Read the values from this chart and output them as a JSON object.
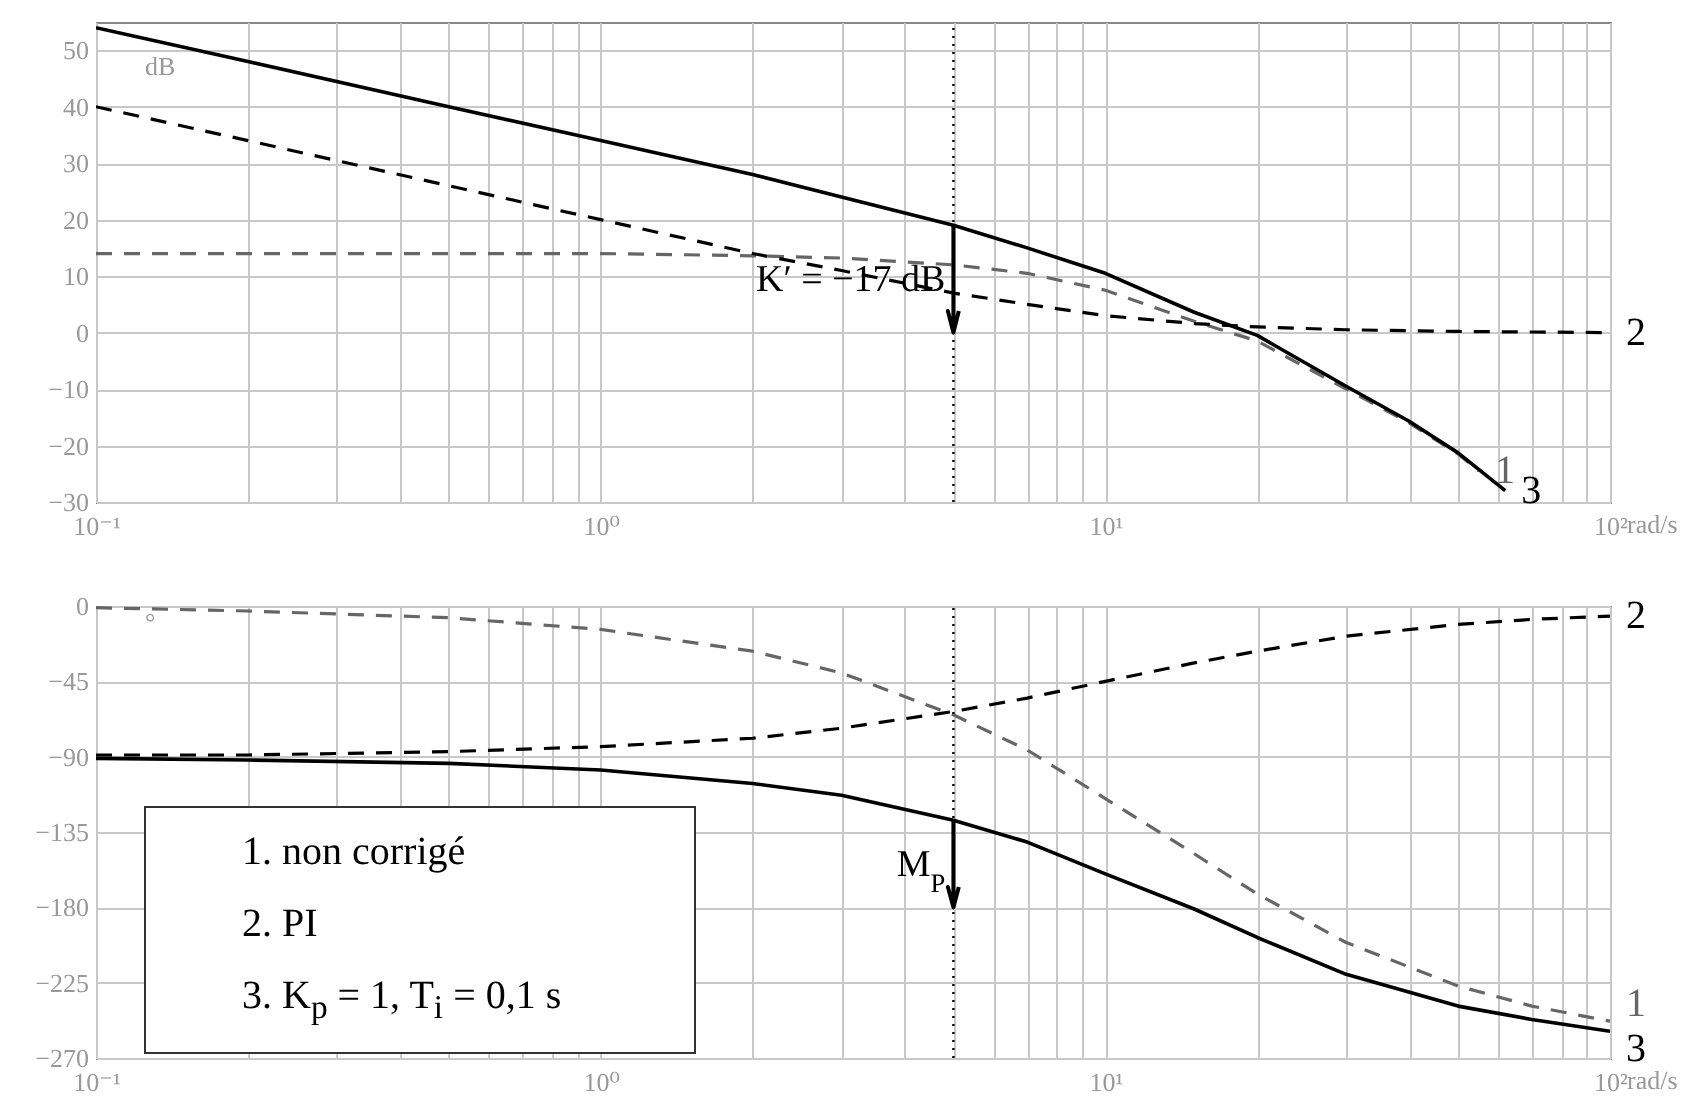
{
  "chart_data": [
    {
      "type": "line",
      "ylabel": "dB",
      "xlabel": "rad/s",
      "log": "x",
      "grid": true,
      "xlim": [
        0.1,
        100
      ],
      "ylim": [
        -30,
        55
      ],
      "xticks": [
        {
          "value": 0.1,
          "label": "10⁻¹"
        },
        {
          "value": 0.2,
          "label": null
        },
        {
          "value": 0.3,
          "label": null
        },
        {
          "value": 0.4,
          "label": null
        },
        {
          "value": 0.5,
          "label": null
        },
        {
          "value": 0.6,
          "label": null
        },
        {
          "value": 0.7,
          "label": null
        },
        {
          "value": 0.8,
          "label": null
        },
        {
          "value": 0.9,
          "label": null
        },
        {
          "value": 1,
          "label": "10⁰"
        },
        {
          "value": 2,
          "label": null
        },
        {
          "value": 3,
          "label": null
        },
        {
          "value": 4,
          "label": null
        },
        {
          "value": 5,
          "label": null
        },
        {
          "value": 6,
          "label": null
        },
        {
          "value": 7,
          "label": null
        },
        {
          "value": 8,
          "label": null
        },
        {
          "value": 9,
          "label": null
        },
        {
          "value": 10,
          "label": "10¹"
        },
        {
          "value": 20,
          "label": null
        },
        {
          "value": 30,
          "label": null
        },
        {
          "value": 40,
          "label": null
        },
        {
          "value": 50,
          "label": null
        },
        {
          "value": 60,
          "label": null
        },
        {
          "value": 70,
          "label": null
        },
        {
          "value": 80,
          "label": null
        },
        {
          "value": 90,
          "label": null
        },
        {
          "value": 100,
          "label": "10²"
        }
      ],
      "yticks": [
        {
          "value": -30,
          "label": "−30"
        },
        {
          "value": -20,
          "label": "−20"
        },
        {
          "value": -10,
          "label": "−10"
        },
        0,
        10,
        20,
        30,
        40,
        50
      ],
      "x": [
        0.1,
        0.2,
        0.5,
        1,
        2,
        3,
        5,
        7,
        10,
        15,
        20,
        30,
        50,
        70,
        100
      ],
      "series": [
        {
          "name": "1",
          "color": "#666666",
          "line_style": "dashed",
          "x": [
            0.1,
            0.2,
            0.5,
            1,
            2,
            3,
            5,
            7,
            10,
            15,
            20,
            30,
            40,
            50,
            55
          ],
          "values": [
            14,
            14,
            14,
            14,
            13.6,
            13.2,
            12,
            10.5,
            7.5,
            2,
            -1.5,
            -10,
            -16,
            -21.5,
            -24.5
          ]
        },
        {
          "name": "2",
          "color": "#000000",
          "line_style": "dashed",
          "values": [
            40,
            34,
            26,
            20,
            14,
            11,
            7,
            5,
            3,
            1.6,
            1,
            0.5,
            0.2,
            0.1,
            0
          ]
        },
        {
          "name": "3",
          "color": "#000000",
          "line_style": "solid",
          "x": [
            0.1,
            0.2,
            0.5,
            1,
            2,
            3,
            5,
            7,
            10,
            15,
            20,
            30,
            40,
            50,
            62
          ],
          "values": [
            54,
            48,
            40,
            34,
            28,
            24,
            19,
            15,
            10.5,
            3.6,
            -0.5,
            -9.5,
            -15.7,
            -21.3,
            -28
          ]
        }
      ],
      "ref_lines": [
        {
          "axis": "x",
          "value": 5,
          "color": "#000000",
          "line_style": "dotted"
        }
      ],
      "annotations": [
        {
          "text": "K′ = −17 dB",
          "x": 5,
          "y": 0
        }
      ]
    },
    {
      "type": "line",
      "ylabel": "°",
      "xlabel": "rad/s",
      "log": "x",
      "grid": true,
      "xlim": [
        0.1,
        100
      ],
      "ylim": [
        -270,
        0
      ],
      "xticks": [
        {
          "value": 0.1,
          "label": "10⁻¹"
        },
        {
          "value": 0.2,
          "label": null
        },
        {
          "value": 0.3,
          "label": null
        },
        {
          "value": 0.4,
          "label": null
        },
        {
          "value": 0.5,
          "label": null
        },
        {
          "value": 0.6,
          "label": null
        },
        {
          "value": 0.7,
          "label": null
        },
        {
          "value": 0.8,
          "label": null
        },
        {
          "value": 0.9,
          "label": null
        },
        {
          "value": 1,
          "label": "10⁰"
        },
        {
          "value": 2,
          "label": null
        },
        {
          "value": 3,
          "label": null
        },
        {
          "value": 4,
          "label": null
        },
        {
          "value": 5,
          "label": null
        },
        {
          "value": 6,
          "label": null
        },
        {
          "value": 7,
          "label": null
        },
        {
          "value": 8,
          "label": null
        },
        {
          "value": 9,
          "label": null
        },
        {
          "value": 10,
          "label": "10¹"
        },
        {
          "value": 20,
          "label": null
        },
        {
          "value": 30,
          "label": null
        },
        {
          "value": 40,
          "label": null
        },
        {
          "value": 50,
          "label": null
        },
        {
          "value": 60,
          "label": null
        },
        {
          "value": 70,
          "label": null
        },
        {
          "value": 80,
          "label": null
        },
        {
          "value": 90,
          "label": null
        },
        {
          "value": 100,
          "label": "10²"
        }
      ],
      "yticks": [
        {
          "value": -270,
          "label": "−270"
        },
        {
          "value": -225,
          "label": "−225"
        },
        {
          "value": -180,
          "label": "−180"
        },
        {
          "value": -135,
          "label": "−135"
        },
        {
          "value": -90,
          "label": "−90"
        },
        {
          "value": -45,
          "label": "−45"
        },
        0
      ],
      "x": [
        0.1,
        0.2,
        0.5,
        1,
        2,
        3,
        5,
        7,
        10,
        15,
        20,
        30,
        50,
        70,
        100
      ],
      "series": [
        {
          "name": "1",
          "color": "#666666",
          "line_style": "dashed",
          "values": [
            -1,
            -3,
            -7,
            -14,
            -27,
            -40,
            -65,
            -86,
            -115,
            -148,
            -172,
            -201,
            -227,
            -239,
            -248
          ]
        },
        {
          "name": "2",
          "color": "#000000",
          "line_style": "dashed",
          "values": [
            -89,
            -89,
            -87,
            -84,
            -79,
            -73,
            -63,
            -55,
            -45,
            -34,
            -27,
            -18,
            -11,
            -8,
            -6
          ]
        },
        {
          "name": "3",
          "color": "#000000",
          "line_style": "solid",
          "values": [
            -91,
            -92,
            -94,
            -98,
            -106,
            -113,
            -128,
            -141,
            -160,
            -181,
            -198,
            -220,
            -239,
            -247,
            -254
          ]
        }
      ],
      "ref_lines": [
        {
          "axis": "x",
          "value": 5,
          "color": "#000000",
          "line_style": "dotted"
        }
      ],
      "annotations": [
        {
          "text": "M$_{P}$",
          "x": 5,
          "y": -180
        },
        "1.  non corrigé",
        "2.  PI",
        "3.  K$_{p}$ = 1, T$_{i}$ = 0,1 s"
      ]
    }
  ]
}
